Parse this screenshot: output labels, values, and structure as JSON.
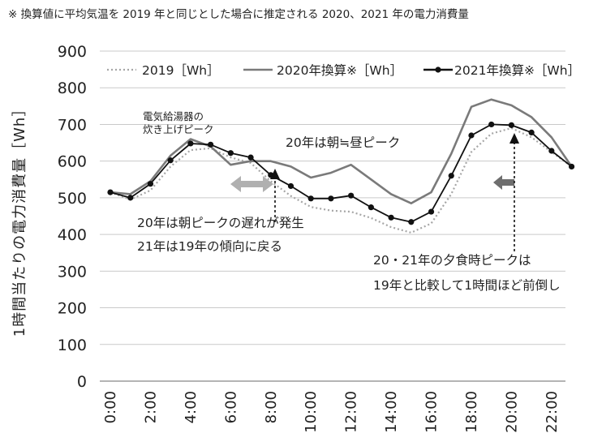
{
  "note": "※ 換算値に平均気温を 2019 年と同じとした場合に推定される 2020、2021 年の電力消費量",
  "chart_data": {
    "type": "line",
    "title": "",
    "xlabel": "",
    "ylabel": "1時間当たりの電力消費量［Wh］",
    "ylim": [
      0,
      900
    ],
    "yticks": [
      "0",
      "100",
      "200",
      "300",
      "400",
      "500",
      "600",
      "700",
      "800",
      "900"
    ],
    "xticks": [
      {
        "hour": 0,
        "label": "0:00"
      },
      {
        "hour": 2,
        "label": "2:00"
      },
      {
        "hour": 4,
        "label": "4:00"
      },
      {
        "hour": 6,
        "label": "6:00"
      },
      {
        "hour": 8,
        "label": "8:00"
      },
      {
        "hour": 10,
        "label": "10:00"
      },
      {
        "hour": 12,
        "label": "12:00"
      },
      {
        "hour": 14,
        "label": "14:00"
      },
      {
        "hour": 16,
        "label": "16:00"
      },
      {
        "hour": 18,
        "label": "18:00"
      },
      {
        "hour": 20,
        "label": "20:00"
      },
      {
        "hour": 22,
        "label": "22:00"
      }
    ],
    "x": [
      0,
      1,
      2,
      3,
      4,
      5,
      6,
      7,
      8,
      9,
      10,
      11,
      12,
      13,
      14,
      15,
      16,
      17,
      18,
      19,
      20,
      21,
      22,
      23
    ],
    "grid": true,
    "legend_position": "top",
    "series": [
      {
        "name": "2019［Wh］",
        "style": "dotted",
        "color": "#a6a6a6",
        "values": [
          515,
          495,
          520,
          585,
          630,
          635,
          610,
          595,
          545,
          505,
          475,
          465,
          462,
          445,
          420,
          405,
          430,
          510,
          625,
          675,
          690,
          665,
          625,
          585
        ]
      },
      {
        "name": "2020年換算※［Wh］",
        "style": "solid",
        "color": "#7a7a7a",
        "values": [
          515,
          510,
          545,
          615,
          660,
          640,
          590,
          600,
          600,
          585,
          555,
          568,
          590,
          550,
          510,
          485,
          515,
          620,
          748,
          768,
          752,
          720,
          665,
          585
        ]
      },
      {
        "name": "2021年換算※［Wh］",
        "style": "solid-markers",
        "color": "#111111",
        "values": [
          515,
          500,
          538,
          602,
          648,
          645,
          622,
          610,
          562,
          532,
          498,
          498,
          506,
          474,
          446,
          434,
          462,
          560,
          670,
          700,
          698,
          678,
          628,
          585
        ]
      }
    ],
    "annotations": [
      {
        "id": "water-heater",
        "lines": [
          "電気給湯器の",
          "炊き上げピーク"
        ]
      },
      {
        "id": "noon-peak",
        "lines": [
          "20年は朝≒昼ピーク"
        ]
      },
      {
        "id": "morning-delay",
        "lines": [
          "20年は朝ピークの遅れが発生",
          "21年は19年の傾向に戻る"
        ]
      },
      {
        "id": "evening-peak",
        "lines": [
          "20・21年の夕食時ピークは",
          "19年と比較して1時間ほど前倒し"
        ]
      }
    ]
  },
  "colors": {
    "grid": "#c9c9c9",
    "axis": "#888888",
    "arrow_light": "#b0b0b0",
    "arrow_dark": "#6e6e6e"
  }
}
